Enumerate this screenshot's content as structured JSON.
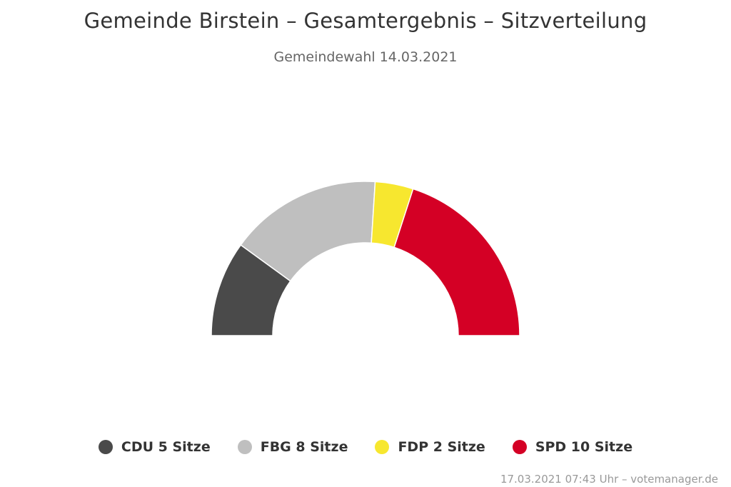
{
  "chart_data": {
    "type": "pie",
    "variant": "parliament-semicircle",
    "title": "Gemeinde Birstein – Gesamtergebnis – Sitzverteilung",
    "subtitle": "Gemeindewahl 14.03.2021",
    "categories": [
      "CDU",
      "FBG",
      "FDP",
      "SPD"
    ],
    "values": [
      5,
      8,
      2,
      10
    ],
    "colors": [
      "#4a4a4a",
      "#bfbfbf",
      "#f7e72f",
      "#d40025"
    ],
    "legend": [
      {
        "label": "CDU 5 Sitze",
        "color": "#4a4a4a"
      },
      {
        "label": "FBG 8 Sitze",
        "color": "#bfbfbf"
      },
      {
        "label": "FDP 2 Sitze",
        "color": "#f7e72f"
      },
      {
        "label": "SPD 10 Sitze",
        "color": "#d40025"
      }
    ],
    "legend_position": "bottom-center",
    "credits": "17.03.2021 07:43 Uhr – votemanager.de"
  }
}
